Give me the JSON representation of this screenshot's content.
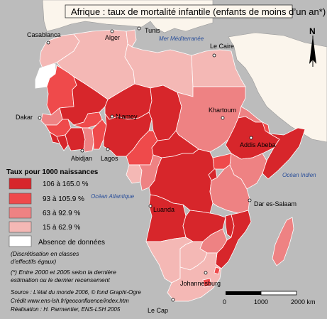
{
  "title": "Afrique : taux de mortalité infantile (enfants de moins d’un an*)",
  "legend": {
    "heading": "Taux pour 1000 naissances",
    "classes": [
      {
        "label": "106  à 165.0 %",
        "color": "#d7262b"
      },
      {
        "label": "93  à 105.9 %",
        "color": "#ef4a4b"
      },
      {
        "label": "63  à   92.9 %",
        "color": "#ee8283"
      },
      {
        "label": "15  à   62.9 %",
        "color": "#f4b8b5"
      },
      {
        "label": "Absence de données",
        "color": "#ffffff"
      }
    ]
  },
  "notes": {
    "discretisation_line1": "(Discrétisation en classes",
    "discretisation_line2": "d’effectifs égaux)",
    "asterisk_line1": "(*) Entre 2000 et 2005 selon la dernière",
    "asterisk_line2": "estimation ou le dernier recensement"
  },
  "credits": {
    "source": "Source : L’état du monde 2006, © fond Graphi-Ogre",
    "credit": "Crédit www.ens-lsh.fr/geoconfluence/index.htm",
    "realisation": "Réalisation : H. Parmentier, ENS-LSH 2005"
  },
  "seas": {
    "mediterranean": "Mer Méditerranée",
    "indian": "Océan Indien",
    "atlantic": "Océan Atlantique"
  },
  "cities": [
    "Casablanca",
    "Alger",
    "Tunis",
    "Le Caire",
    "Dakar",
    "Niamey",
    "Khartoum",
    "Addis Abeba",
    "Abidjan",
    "Lagos",
    "Luanda",
    "Dar es-Salaam",
    "Johannesburg",
    "Le Cap"
  ],
  "north_label": "N",
  "scale": {
    "labels": [
      "0",
      "1000",
      "2000 km"
    ],
    "max_km": 2000
  },
  "colors": {
    "c1": "#d7262b",
    "c2": "#ef4a4b",
    "c3": "#ee8283",
    "c4": "#f4b8b5",
    "nodata": "#ffffff",
    "land_other": "#fbf5ec",
    "sea": "#bcbcbc"
  }
}
